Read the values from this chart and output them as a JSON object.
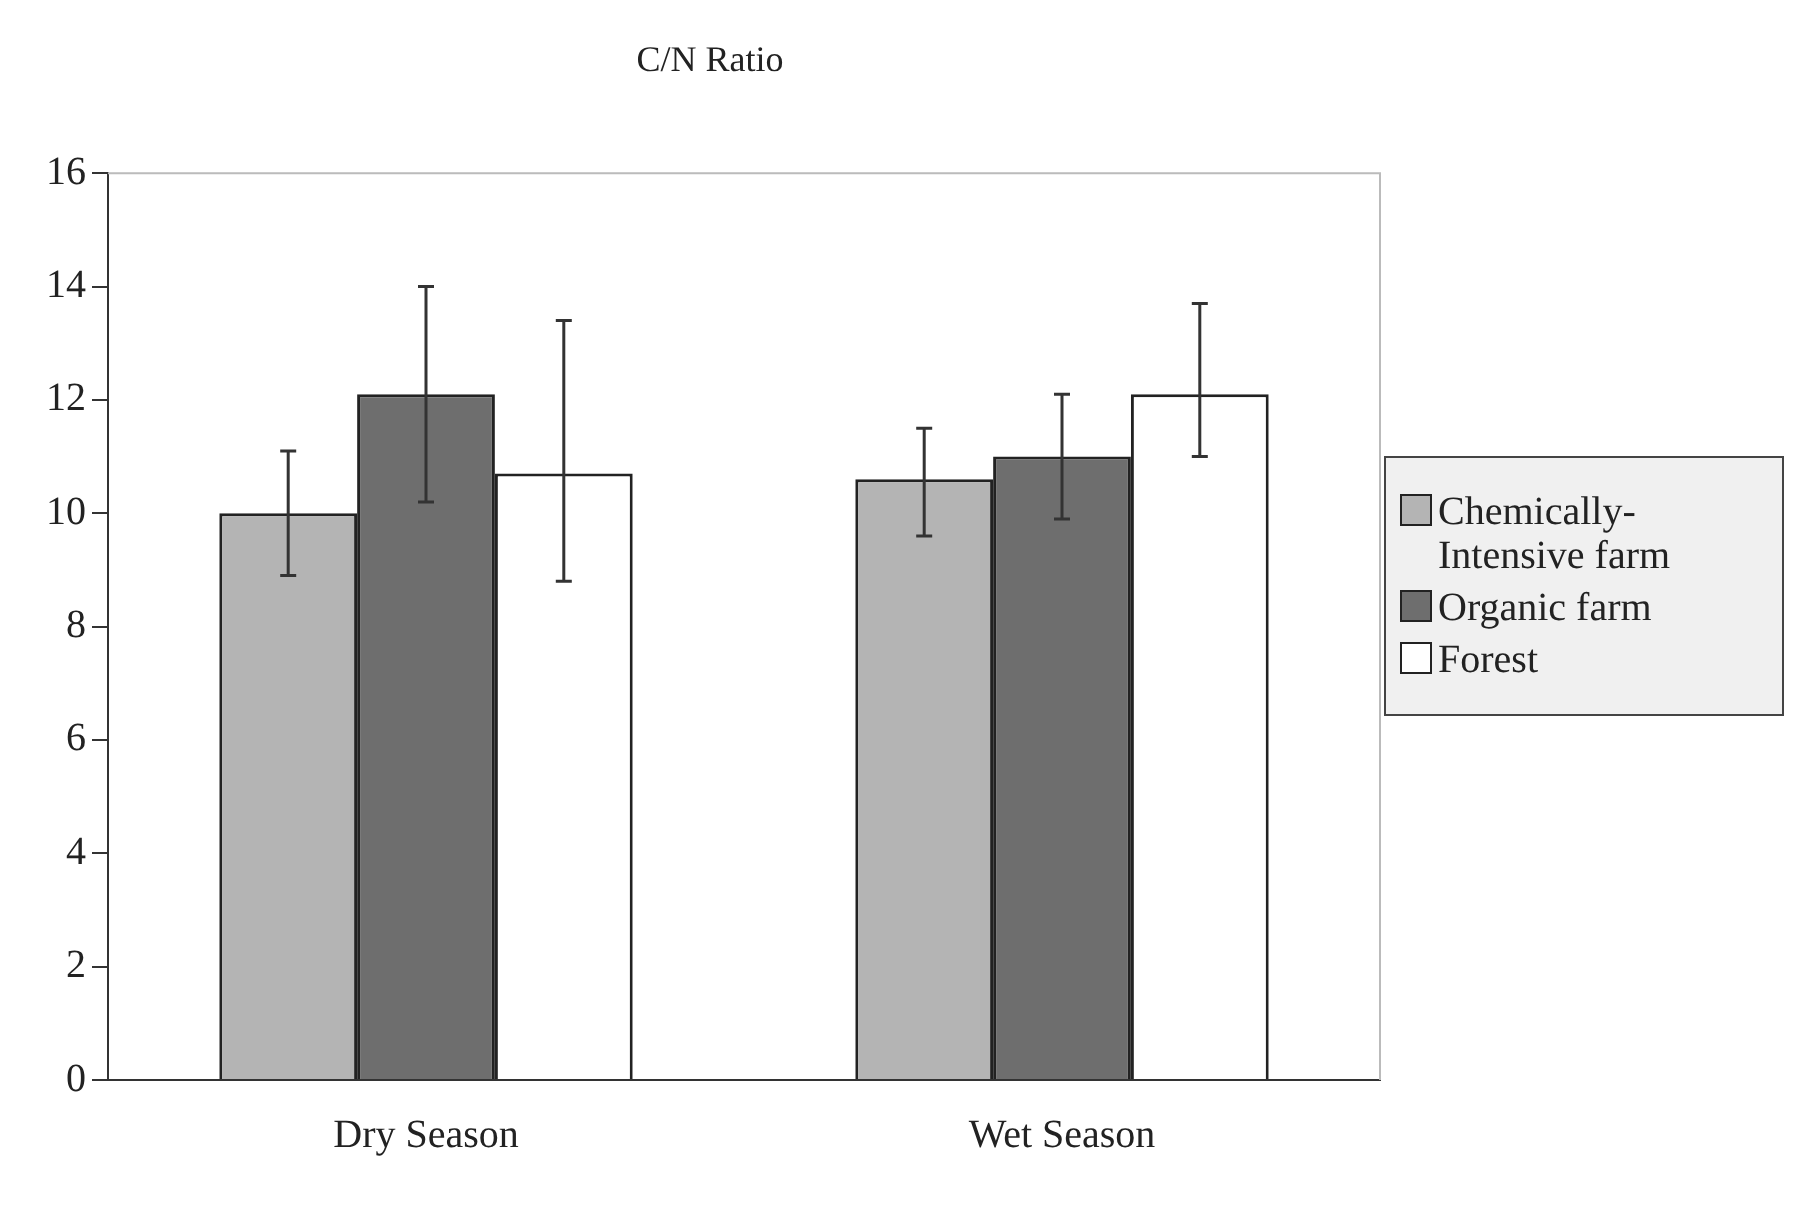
{
  "chart_data": {
    "type": "bar",
    "title": "C/N Ratio",
    "categories": [
      "Dry Season",
      "Wet Season"
    ],
    "series": [
      {
        "name": "Chemically-Intensive farm",
        "color": "#b4b4b4",
        "values": [
          10.0,
          10.6
        ],
        "errors": [
          [
            8.9,
            11.1
          ],
          [
            9.6,
            11.5
          ]
        ]
      },
      {
        "name": "Organic farm",
        "color": "#6e6e6e",
        "values": [
          12.1,
          11.0
        ],
        "errors": [
          [
            10.2,
            14.0
          ],
          [
            9.9,
            12.1
          ]
        ]
      },
      {
        "name": "Forest",
        "color": "#ffffff",
        "values": [
          10.7,
          12.1
        ],
        "errors": [
          [
            8.8,
            13.4
          ],
          [
            11.0,
            13.7
          ]
        ]
      }
    ],
    "ylim": [
      0,
      16
    ],
    "yticks": [
      0,
      2,
      4,
      6,
      8,
      10,
      12,
      14,
      16
    ],
    "grid": false,
    "legend": "right"
  }
}
